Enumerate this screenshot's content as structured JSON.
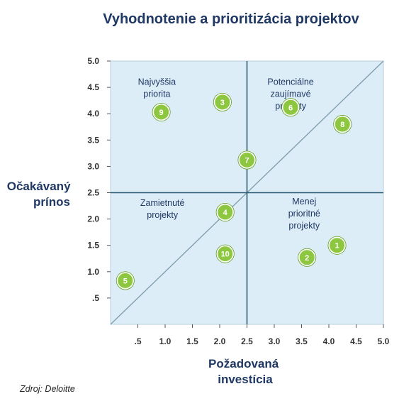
{
  "chart_data": {
    "type": "scatter",
    "title": "Vyhodnotenie a prioritizácia projektov",
    "xlabel": [
      "Požadovaná",
      "investícia"
    ],
    "ylabel": [
      "Očakávaný",
      "prínos"
    ],
    "xlim": [
      0,
      5.0
    ],
    "ylim": [
      0,
      5.0
    ],
    "x_ticks": [
      {
        "value": 0.5,
        "label": ".5"
      },
      {
        "value": 1.0,
        "label": "1.0"
      },
      {
        "value": 1.5,
        "label": "1.5"
      },
      {
        "value": 2.0,
        "label": "2.0"
      },
      {
        "value": 2.5,
        "label": "2.5"
      },
      {
        "value": 3.0,
        "label": "3.0"
      },
      {
        "value": 3.5,
        "label": "3.5"
      },
      {
        "value": 4.0,
        "label": "4.0"
      },
      {
        "value": 4.5,
        "label": "4.5"
      },
      {
        "value": 5.0,
        "label": "5.0"
      }
    ],
    "y_ticks": [
      {
        "value": 0.5,
        "label": ".5"
      },
      {
        "value": 1.0,
        "label": "1.0"
      },
      {
        "value": 1.5,
        "label": "1.5"
      },
      {
        "value": 2.0,
        "label": "2.0"
      },
      {
        "value": 2.5,
        "label": "2.5"
      },
      {
        "value": 3.0,
        "label": "3.0"
      },
      {
        "value": 3.5,
        "label": "3.5"
      },
      {
        "value": 4.0,
        "label": "4.0"
      },
      {
        "value": 4.5,
        "label": "4.5"
      },
      {
        "value": 5.0,
        "label": "5.0"
      }
    ],
    "dividers": {
      "x": 2.5,
      "y": 2.5
    },
    "diagonal": [
      [
        0,
        0
      ],
      [
        5.0,
        5.0
      ]
    ],
    "quadrants": [
      {
        "lines": [
          "Najvyššia",
          "priorita"
        ],
        "x": 0.85,
        "y": 4.55
      },
      {
        "lines": [
          "Potenciálne",
          "zaujímavé",
          "projekty"
        ],
        "x": 3.3,
        "y": 4.55
      },
      {
        "lines": [
          "Zamietnuté",
          "projekty"
        ],
        "x": 0.95,
        "y": 2.25
      },
      {
        "lines": [
          "Menej",
          "prioritné",
          "projekty"
        ],
        "x": 3.55,
        "y": 2.28
      }
    ],
    "points": [
      {
        "label": "1",
        "x": 4.15,
        "y": 1.5
      },
      {
        "label": "2",
        "x": 3.6,
        "y": 1.27
      },
      {
        "label": "3",
        "x": 2.05,
        "y": 4.22
      },
      {
        "label": "4",
        "x": 2.1,
        "y": 2.13
      },
      {
        "label": "5",
        "x": 0.27,
        "y": 0.83
      },
      {
        "label": "6",
        "x": 3.3,
        "y": 4.12
      },
      {
        "label": "7",
        "x": 2.5,
        "y": 3.12
      },
      {
        "label": "8",
        "x": 4.25,
        "y": 3.8
      },
      {
        "label": "9",
        "x": 0.93,
        "y": 4.03
      },
      {
        "label": "10",
        "x": 2.1,
        "y": 1.34
      }
    ],
    "grid": false,
    "colors": {
      "plot_background": "#dcedf7",
      "point_fill": "#8dc63f",
      "point_stroke": "#5e9e1b",
      "divider": "#2a5a74",
      "diagonal": "#7f9cac",
      "title": "#1f3864"
    }
  },
  "source": "Zdroj: Deloitte"
}
